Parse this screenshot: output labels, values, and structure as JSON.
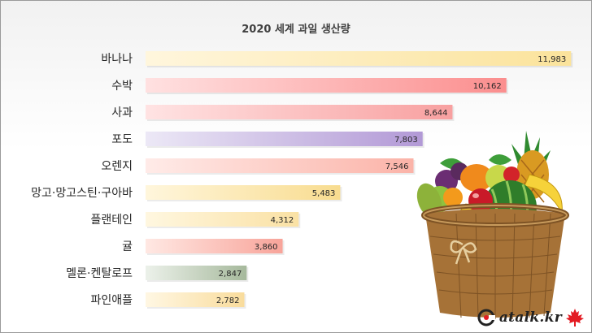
{
  "chart_data": {
    "type": "bar",
    "orientation": "horizontal",
    "title": "2020 세계 과일 생산량",
    "categories": [
      "바나나",
      "수박",
      "사과",
      "포도",
      "오렌지",
      "망고·망고스틴·구아바",
      "플랜테인",
      "귤",
      "멜론·켄탈로프",
      "파인애플"
    ],
    "values": [
      11983,
      10162,
      8644,
      7803,
      7546,
      5483,
      4312,
      3860,
      2847,
      2782
    ],
    "value_labels": [
      "11,983",
      "10,162",
      "8,644",
      "7,803",
      "7,546",
      "5,483",
      "4,312",
      "3,860",
      "2,847",
      "2,782"
    ],
    "bar_colors": [
      [
        "#fff6dd",
        "#fbe39b"
      ],
      [
        "#ffe1e1",
        "#fb8e8e"
      ],
      [
        "#ffe3e3",
        "#f8a0a0"
      ],
      [
        "#ece8f6",
        "#b299d6"
      ],
      [
        "#ffebe8",
        "#fbb3a8"
      ],
      [
        "#fff6dc",
        "#f8dc8f"
      ],
      [
        "#fff7e0",
        "#fae1a4"
      ],
      [
        "#ffe8e3",
        "#f8a49a"
      ],
      [
        "#ecf1ea",
        "#a6b99c"
      ],
      [
        "#fff7e3",
        "#f9dc9c"
      ]
    ],
    "xlim": [
      0,
      12000
    ],
    "grid": false,
    "legend": "none"
  },
  "watermark": {
    "text": "atalk.kr",
    "icon": "maple-leaf-icon",
    "accent": "#e31b23"
  }
}
